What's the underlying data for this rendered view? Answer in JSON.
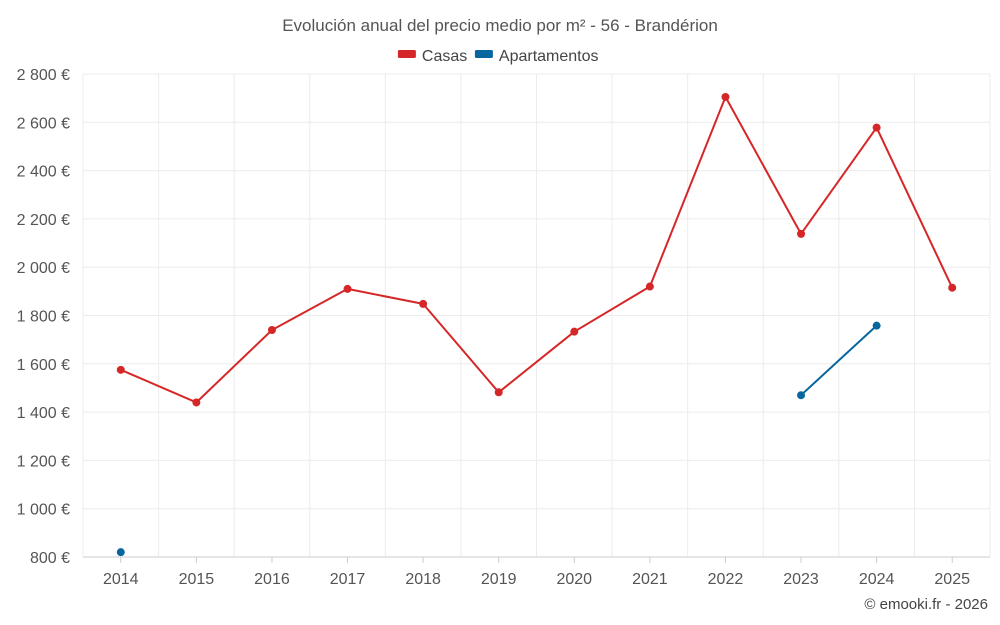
{
  "chart_data": {
    "type": "line",
    "title": "Evolución anual del precio medio por m² - 56 - Brandérion",
    "categories": [
      "2014",
      "2015",
      "2016",
      "2017",
      "2018",
      "2019",
      "2020",
      "2021",
      "2022",
      "2023",
      "2024",
      "2025"
    ],
    "series": [
      {
        "name": "Casas",
        "color": "#d62728",
        "values": [
          1575,
          1440,
          1740,
          1910,
          1848,
          1482,
          1733,
          1920,
          2705,
          2138,
          2578,
          1915
        ]
      },
      {
        "name": "Apartamentos",
        "color": "#08669e",
        "values": [
          820,
          null,
          null,
          null,
          null,
          null,
          null,
          null,
          null,
          1470,
          1758,
          null
        ]
      }
    ],
    "ylim": [
      800,
      2800
    ],
    "yticks": [
      800,
      1000,
      1200,
      1400,
      1600,
      1800,
      2000,
      2200,
      2400,
      2600,
      2800
    ],
    "ytick_labels": [
      "800 €",
      "1 000 €",
      "1 200 €",
      "1 400 €",
      "1 600 €",
      "1 800 €",
      "2 000 €",
      "2 200 €",
      "2 400 €",
      "2 600 €",
      "2 800 €"
    ],
    "legend_position": "top-center",
    "grid": true
  },
  "credit": "© emooki.fr - 2026"
}
